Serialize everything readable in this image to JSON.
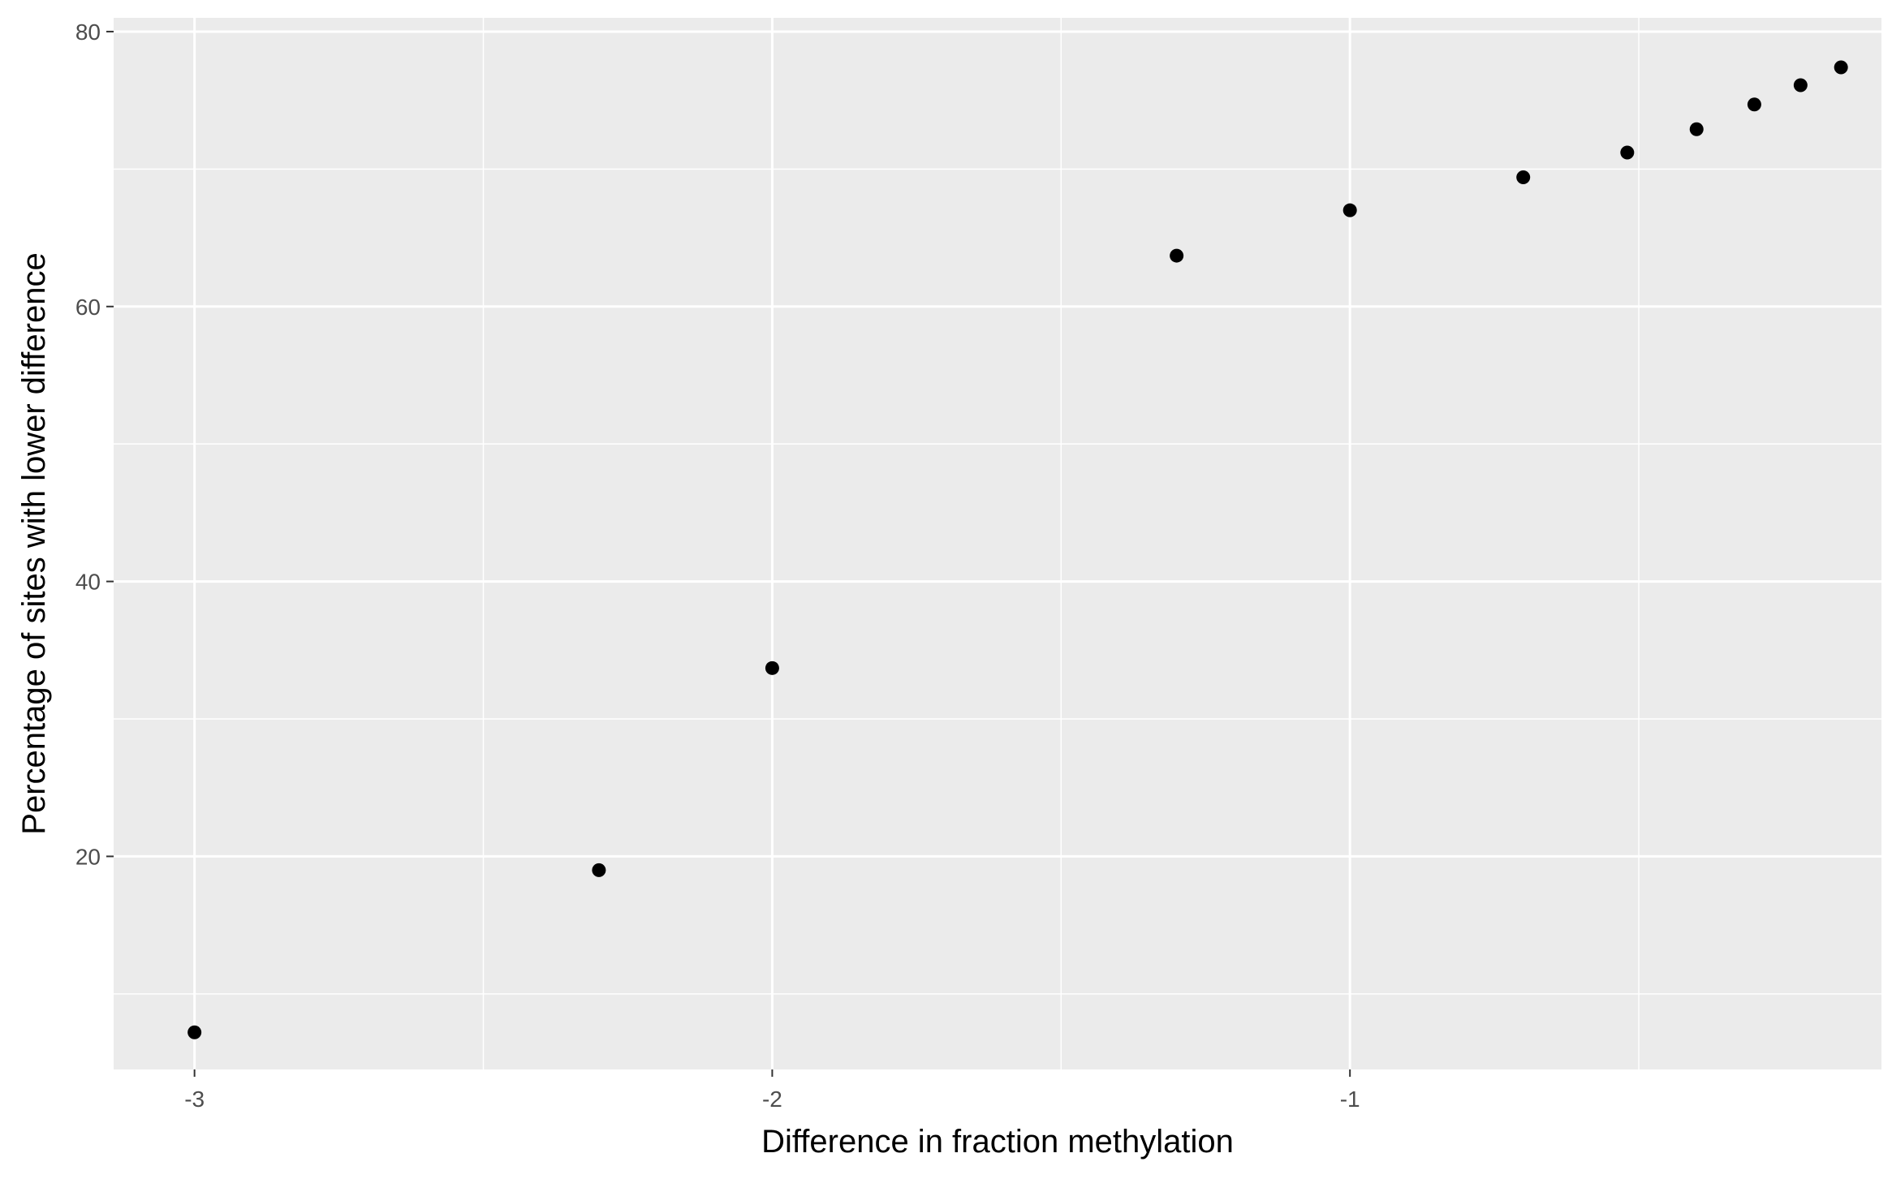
{
  "chart_data": {
    "type": "scatter",
    "xlabel": "Difference in fraction methylation",
    "ylabel": "Percentage of sites with lower difference",
    "xlim": [
      -3.14,
      -0.08
    ],
    "ylim": [
      4.5,
      81
    ],
    "x_ticks": [
      {
        "value": -3,
        "label": "-3"
      },
      {
        "value": -2,
        "label": "-2"
      },
      {
        "value": -1,
        "label": "-1"
      }
    ],
    "x_minor_gridlines": [
      -2.5,
      -1.5,
      -0.5
    ],
    "y_ticks": [
      {
        "value": 20,
        "label": "20"
      },
      {
        "value": 40,
        "label": "40"
      },
      {
        "value": 60,
        "label": "60"
      },
      {
        "value": 80,
        "label": "80"
      }
    ],
    "y_minor_gridlines": [
      10,
      30,
      50,
      70
    ],
    "grid": true,
    "legend": "none",
    "points": [
      {
        "x": -3.0,
        "y": 7.2
      },
      {
        "x": -2.3,
        "y": 19.0
      },
      {
        "x": -2.0,
        "y": 33.7
      },
      {
        "x": -1.3,
        "y": 63.7
      },
      {
        "x": -1.0,
        "y": 67.0
      },
      {
        "x": -0.7,
        "y": 69.4
      },
      {
        "x": -0.52,
        "y": 71.2
      },
      {
        "x": -0.4,
        "y": 72.9
      },
      {
        "x": -0.3,
        "y": 74.7
      },
      {
        "x": -0.22,
        "y": 76.1
      },
      {
        "x": -0.15,
        "y": 77.4
      }
    ],
    "colors": {
      "panel_background": "#ebebeb",
      "gridline": "#ffffff",
      "point": "#000000",
      "tick_text": "#4d4d4d",
      "axis_title": "#000000"
    }
  }
}
